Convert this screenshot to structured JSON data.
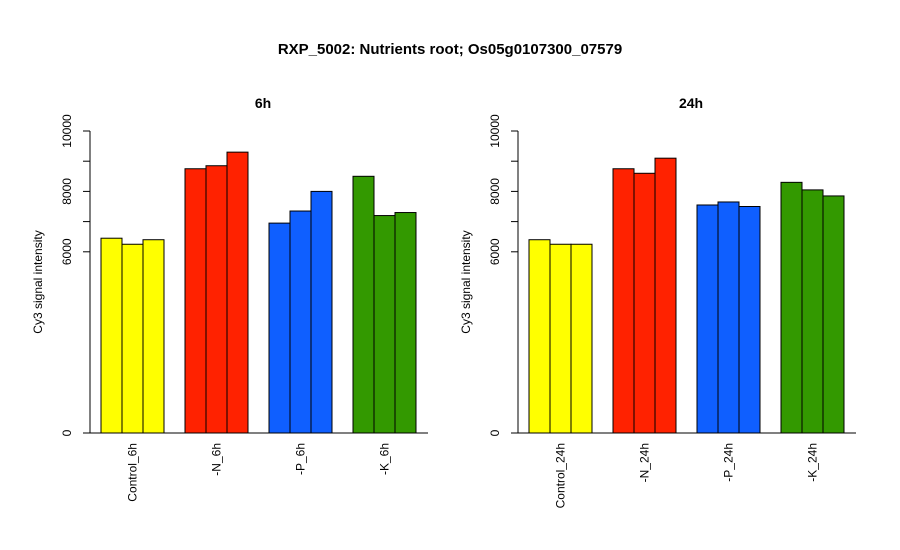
{
  "title": "RXP_5002: Nutrients root; Os05g0107300_07579",
  "chart_data": [
    {
      "type": "bar",
      "title": "6h",
      "ylabel": "Cy3 signal intensity",
      "ylim": [
        0,
        10000
      ],
      "yticks": [
        0,
        6000,
        8000,
        10000
      ],
      "groups": [
        {
          "label": "Control_6h",
          "color": "#ffff00",
          "values": [
            6450,
            6250,
            6400
          ]
        },
        {
          "label": "-N_6h",
          "color": "#ff2200",
          "values": [
            8750,
            8850,
            9300
          ]
        },
        {
          "label": "-P_6h",
          "color": "#0f5fff",
          "values": [
            6950,
            7350,
            8000
          ]
        },
        {
          "label": "-K_6h",
          "color": "#339900",
          "values": [
            8500,
            7200,
            7300
          ]
        }
      ]
    },
    {
      "type": "bar",
      "title": "24h",
      "ylabel": "Cy3 signal intensity",
      "ylim": [
        0,
        10000
      ],
      "yticks": [
        0,
        6000,
        8000,
        10000
      ],
      "groups": [
        {
          "label": "Control_24h",
          "color": "#ffff00",
          "values": [
            6400,
            6250,
            6250
          ]
        },
        {
          "label": "-N_24h",
          "color": "#ff2200",
          "values": [
            8750,
            8600,
            9100
          ]
        },
        {
          "label": "-P_24h",
          "color": "#0f5fff",
          "values": [
            7550,
            7650,
            7500
          ]
        },
        {
          "label": "-K_24h",
          "color": "#339900",
          "values": [
            8300,
            8050,
            7850
          ]
        }
      ]
    }
  ]
}
